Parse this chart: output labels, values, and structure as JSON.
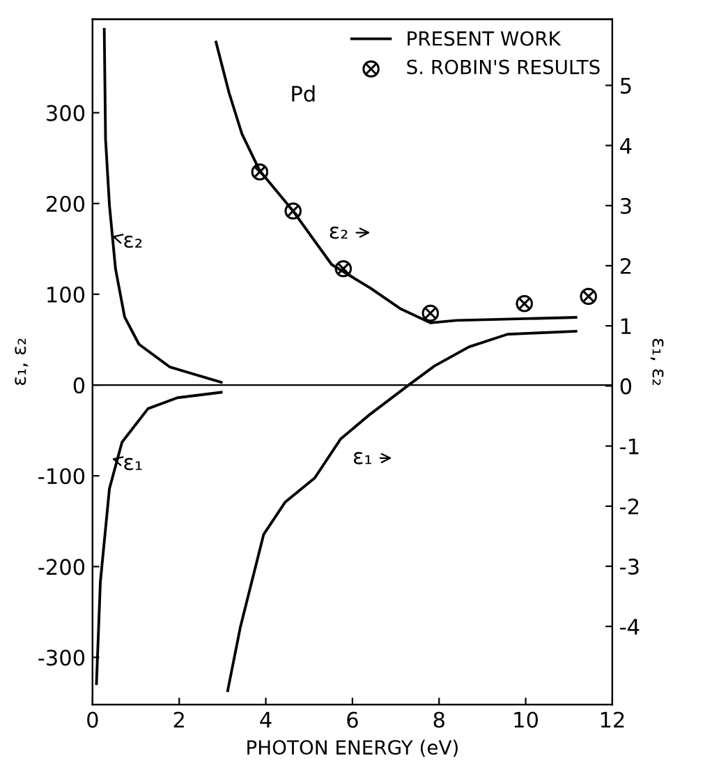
{
  "chart_data": {
    "type": "line",
    "xlabel": "PHOTON ENERGY (eV)",
    "ylabel": "ε₁, ε₂",
    "y2label": "ε₁, ε₂",
    "xlim": [
      0,
      12
    ],
    "xticks": [
      0,
      2,
      4,
      6,
      8,
      10,
      12
    ],
    "ylim": [
      -352,
      403
    ],
    "yticks": [
      -300,
      -200,
      -100,
      0,
      100,
      200,
      300
    ],
    "y2lim": [
      -5.3,
      6.1
    ],
    "y2ticks": [
      -4,
      -3,
      -2,
      -1,
      0,
      1,
      2,
      3,
      4,
      5
    ],
    "legend": "top right",
    "grid": false,
    "ref_lines": [
      {
        "axis": "y",
        "value": 0,
        "color": "#000000"
      }
    ],
    "annotations": [
      "Pd",
      "ε₂",
      "ε₁",
      "ε₂",
      "ε₁"
    ],
    "series": [
      {
        "name": "PRESENT WORK",
        "color": "#000000",
        "marker": "none",
        "axis": "y2",
        "x": [
          2.85,
          3.15,
          3.45,
          3.86,
          4.63,
          5.52,
          6.41,
          7.12,
          7.8,
          8.4,
          11.16
        ],
        "values": [
          5.72,
          4.88,
          4.19,
          3.58,
          2.91,
          2.02,
          1.63,
          1.28,
          1.05,
          1.09,
          1.14
        ]
      },
      {
        "color": "#000000",
        "marker": "none",
        "axis": "y2",
        "x": [
          3.12,
          3.41,
          3.95,
          4.45,
          5.13,
          5.73,
          6.41,
          7.27,
          7.89,
          8.69,
          9.58,
          11.16
        ],
        "values": [
          -5.07,
          -4.02,
          -2.47,
          -1.93,
          -1.53,
          -0.88,
          -0.47,
          0,
          0.33,
          0.65,
          0.86,
          0.91
        ]
      },
      {
        "color": "#000000",
        "marker": "none",
        "axis": "y",
        "x": [
          0.27,
          0.3,
          0.39,
          0.53,
          0.74,
          1.07,
          1.78,
          2.97
        ],
        "values": [
          392,
          271,
          198,
          128,
          75,
          45,
          20,
          3
        ]
      },
      {
        "color": "#000000",
        "marker": "none",
        "axis": "y",
        "x": [
          0.09,
          0.18,
          0.39,
          0.68,
          1.28,
          1.96,
          2.97
        ],
        "values": [
          -329,
          -217,
          -114,
          -63,
          -26,
          -14,
          -8
        ]
      },
      {
        "name": "S. ROBIN'S RESULTS",
        "type": "scatter",
        "color": "#000000",
        "marker": "cross",
        "axis": "y2",
        "x": [
          3.86,
          4.63,
          5.79,
          7.8,
          9.97,
          11.45
        ],
        "values": [
          3.56,
          2.91,
          1.95,
          1.21,
          1.37,
          1.49
        ]
      }
    ]
  }
}
